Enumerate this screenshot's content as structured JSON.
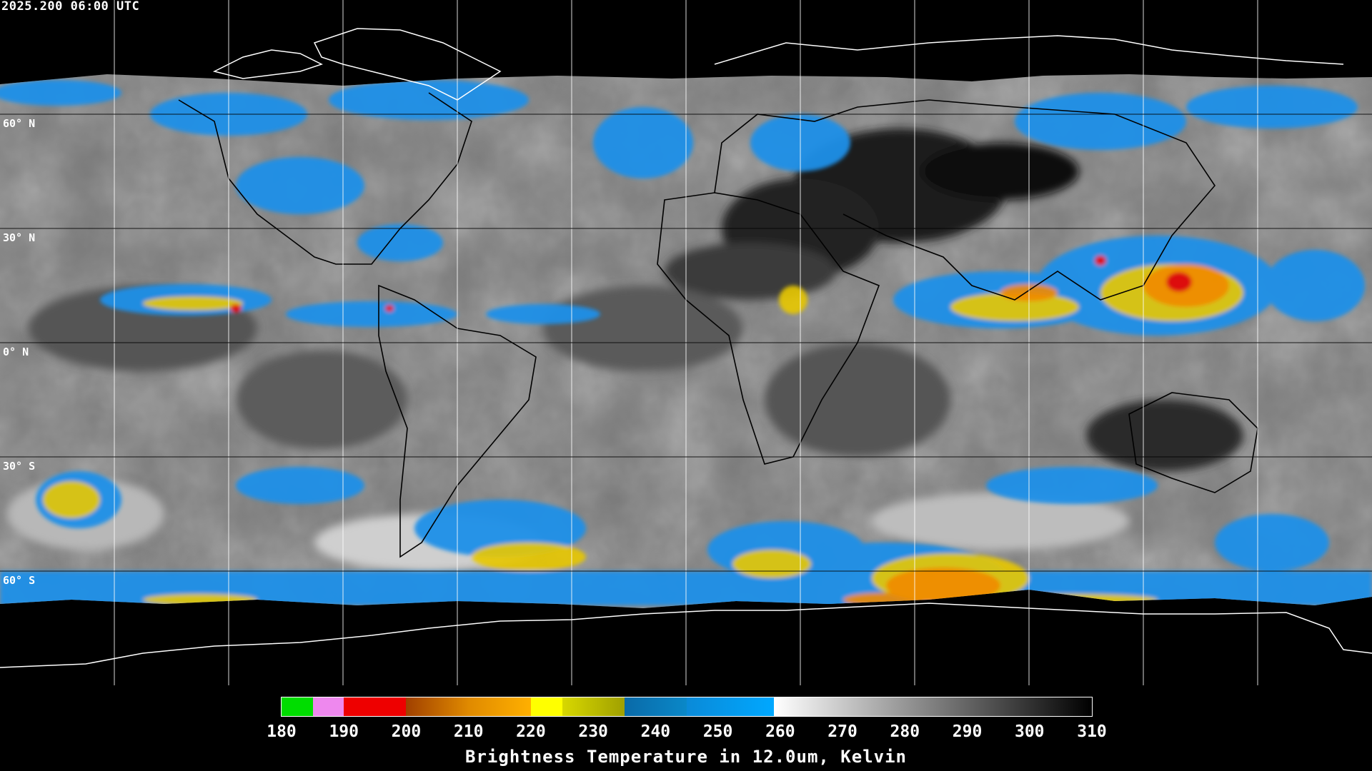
{
  "timestamp": "2025.200 06:00 UTC",
  "lat_labels": [
    "60° N",
    "30° N",
    "0° N",
    "30° S",
    "60° S"
  ],
  "colorbar": {
    "title": "Brightness Temperature in 12.0um, Kelvin",
    "ticks": [
      "180",
      "190",
      "200",
      "210",
      "220",
      "230",
      "240",
      "250",
      "260",
      "270",
      "280",
      "290",
      "300",
      "310"
    ],
    "range_k": [
      180,
      310
    ],
    "palette": [
      {
        "from": 180,
        "to": 185,
        "color": "#00dd00"
      },
      {
        "from": 185,
        "to": 190,
        "color": "#ee88ee"
      },
      {
        "from": 190,
        "to": 200,
        "color": "#ee0000"
      },
      {
        "from": 200,
        "to": 210,
        "color": "#c05a00"
      },
      {
        "from": 210,
        "to": 220,
        "color": "#f0a000"
      },
      {
        "from": 220,
        "to": 225,
        "color": "#ffff00"
      },
      {
        "from": 225,
        "to": 235,
        "color": "#b0b000"
      },
      {
        "from": 235,
        "to": 245,
        "color": "#0a78b4"
      },
      {
        "from": 245,
        "to": 259,
        "color": "#00a0ff"
      },
      {
        "from": 259,
        "to": 310,
        "color": "grayscale-white-to-black"
      }
    ]
  },
  "colors": {
    "background": "#000000",
    "cloud_cold_blue": "#1e90e8",
    "cloud_yellow": "#e8d000",
    "cloud_orange": "#f08a00",
    "cloud_red": "#dd1010",
    "warm_dark": "#202020",
    "graticule": "#ffffff"
  }
}
